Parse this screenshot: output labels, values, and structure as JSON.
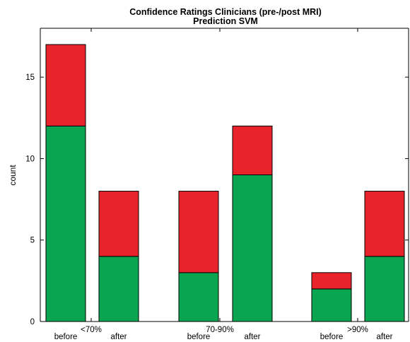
{
  "chart_data": {
    "type": "bar",
    "stacked": true,
    "title": "Confidence Ratings Clinicians (pre-/post MRI)",
    "subtitle": "Prediction SVM",
    "xlabel": "",
    "ylabel": "count",
    "ylim": [
      0,
      18
    ],
    "yticks": [
      0,
      5,
      10,
      15
    ],
    "groups": [
      "<70%",
      "70-90%",
      ">90%"
    ],
    "categories": [
      "before",
      "after",
      "before",
      "after",
      "before",
      "after"
    ],
    "series": [
      {
        "values": [
          12,
          4,
          3,
          9,
          2,
          4
        ],
        "color": "#0aa550"
      },
      {
        "values": [
          5,
          4,
          5,
          3,
          1,
          4
        ],
        "color": "#e8232b"
      }
    ],
    "grid": false,
    "legend": "none"
  }
}
